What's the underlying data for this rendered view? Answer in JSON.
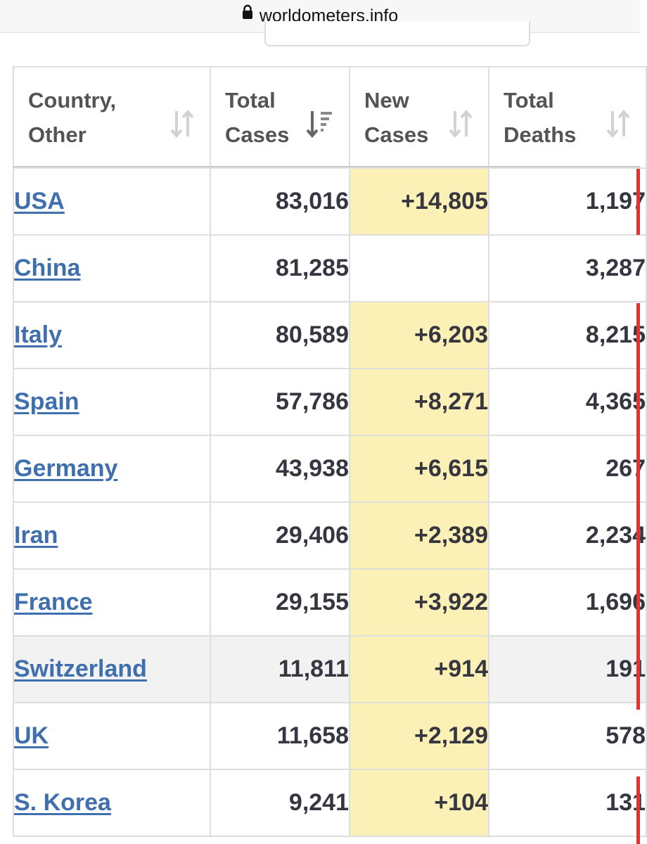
{
  "browser": {
    "url": "worldometers.info"
  },
  "table": {
    "headers": [
      {
        "line1": "Country,",
        "line2": "Other"
      },
      {
        "line1": "Total",
        "line2": "Cases"
      },
      {
        "line1": "New",
        "line2": "Cases"
      },
      {
        "line1": "Total",
        "line2": "Deaths"
      }
    ],
    "rows": [
      {
        "country": "USA",
        "total_cases": "83,016",
        "new_cases": "+14,805",
        "total_deaths": "1,197"
      },
      {
        "country": "China",
        "total_cases": "81,285",
        "new_cases": "",
        "total_deaths": "3,287"
      },
      {
        "country": "Italy",
        "total_cases": "80,589",
        "new_cases": "+6,203",
        "total_deaths": "8,215"
      },
      {
        "country": "Spain",
        "total_cases": "57,786",
        "new_cases": "+8,271",
        "total_deaths": "4,365"
      },
      {
        "country": "Germany",
        "total_cases": "43,938",
        "new_cases": "+6,615",
        "total_deaths": "267"
      },
      {
        "country": "Iran",
        "total_cases": "29,406",
        "new_cases": "+2,389",
        "total_deaths": "2,234"
      },
      {
        "country": "France",
        "total_cases": "29,155",
        "new_cases": "+3,922",
        "total_deaths": "1,696"
      },
      {
        "country": "Switzerland",
        "total_cases": "11,811",
        "new_cases": "+914",
        "total_deaths": "191"
      },
      {
        "country": "UK",
        "total_cases": "11,658",
        "new_cases": "+2,129",
        "total_deaths": "578"
      },
      {
        "country": "S. Korea",
        "total_cases": "9,241",
        "new_cases": "+104",
        "total_deaths": "131"
      }
    ]
  },
  "colors": {
    "link": "#3f6fad",
    "new_cases_highlight": "#fbf0b6",
    "death_marker": "#e5312f"
  }
}
